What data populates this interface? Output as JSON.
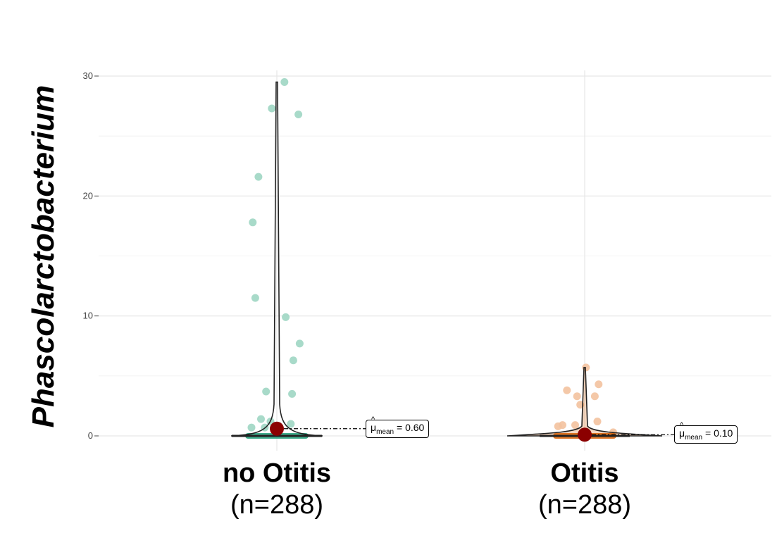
{
  "chart_data": {
    "type": "violin",
    "ylabel": "Phascolarctobacterium",
    "ylim": [
      -1.2,
      31.4
    ],
    "yticks": [
      0,
      10,
      20,
      30
    ],
    "grid": true,
    "categories": [
      {
        "name": "no Otitis",
        "n_label": "(n=288)",
        "color": "#1b9e77",
        "point_color": "#9fd6c3",
        "mean": 0.6,
        "mean_label": "0.60",
        "points": [
          [
            0.12,
            29.5
          ],
          [
            -0.08,
            27.3
          ],
          [
            0.34,
            26.8
          ],
          [
            -0.29,
            21.6
          ],
          [
            -0.38,
            17.8
          ],
          [
            -0.34,
            11.5
          ],
          [
            0.14,
            9.9
          ],
          [
            0.36,
            7.7
          ],
          [
            0.26,
            6.3
          ],
          [
            -0.17,
            3.7
          ],
          [
            0.24,
            3.5
          ],
          [
            -0.25,
            1.4
          ],
          [
            -0.1,
            1.2
          ],
          [
            0.22,
            1.0
          ],
          [
            -0.4,
            0.7
          ],
          [
            -0.19,
            0.7
          ]
        ]
      },
      {
        "name": "Otitis",
        "n_label": "(n=288)",
        "color": "#d95f02",
        "point_color": "#f3c29e",
        "mean": 0.1,
        "mean_label": "0.10",
        "points": [
          [
            0.02,
            5.7
          ],
          [
            -0.28,
            3.8
          ],
          [
            0.22,
            4.3
          ],
          [
            -0.12,
            3.3
          ],
          [
            0.16,
            3.3
          ],
          [
            -0.07,
            2.6
          ],
          [
            0.2,
            1.2
          ],
          [
            -0.35,
            0.9
          ],
          [
            -0.42,
            0.8
          ],
          [
            -0.15,
            0.9
          ],
          [
            0.45,
            0.3
          ]
        ]
      }
    ],
    "annotation_prefix": "μ",
    "annotation_sub": "mean",
    "annotation_eq": " = "
  }
}
